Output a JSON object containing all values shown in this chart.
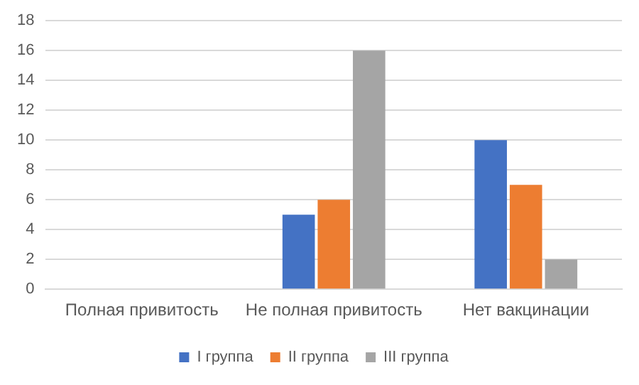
{
  "chart_data": {
    "type": "bar",
    "categories": [
      "Полная привитость",
      "Не полная привитость",
      "Нет вакцинации"
    ],
    "series": [
      {
        "name": "I группа",
        "color": "#4472c4",
        "values": [
          0,
          5,
          10
        ]
      },
      {
        "name": "II группа",
        "color": "#ed7d31",
        "values": [
          0,
          6,
          7
        ]
      },
      {
        "name": "III группа",
        "color": "#a5a5a5",
        "values": [
          0,
          16,
          2
        ]
      }
    ],
    "ylim": [
      0,
      18
    ],
    "yticks": [
      0,
      2,
      4,
      6,
      8,
      10,
      12,
      14,
      16,
      18
    ],
    "grid": "y",
    "legend": "bottom"
  }
}
